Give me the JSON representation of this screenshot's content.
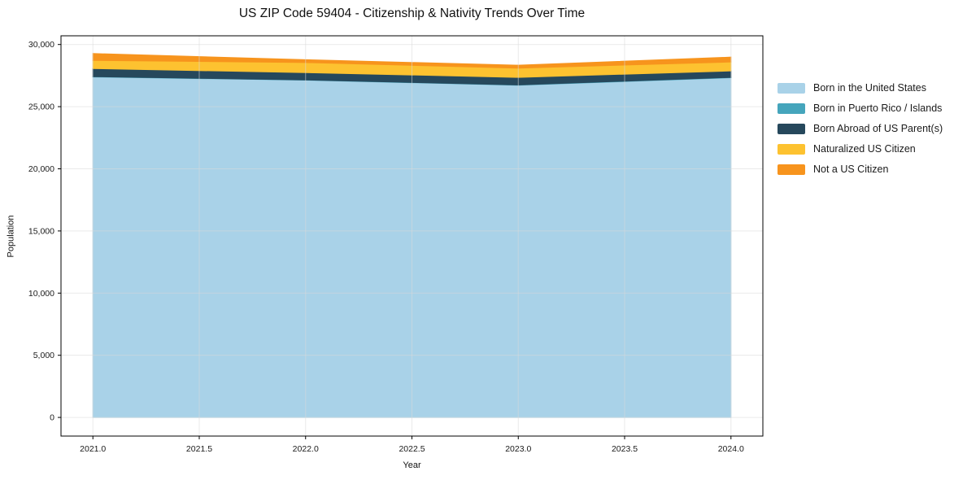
{
  "chart_data": {
    "type": "area",
    "stacked": true,
    "title": "US ZIP Code 59404 - Citizenship & Nativity Trends Over Time",
    "xlabel": "Year",
    "ylabel": "Population",
    "x": [
      2021,
      2022,
      2023,
      2024
    ],
    "series": [
      {
        "name": "Born in the United States",
        "color": "#a9d2e8",
        "values": [
          27390,
          27130,
          26720,
          27330
        ]
      },
      {
        "name": "Born in Puerto Rico / Islands",
        "color": "#45a5bc",
        "values": [
          25,
          25,
          25,
          25
        ]
      },
      {
        "name": "Born Abroad of US Parent(s)",
        "color": "#26485c",
        "values": [
          650,
          590,
          610,
          520
        ]
      },
      {
        "name": "Naturalized US Citizen",
        "color": "#fdc230",
        "values": [
          660,
          805,
          740,
          720
        ]
      },
      {
        "name": "Not a US Citizen",
        "color": "#f7941d",
        "values": [
          550,
          225,
          240,
          390
        ]
      }
    ],
    "xlim": [
      2020.85,
      2024.15
    ],
    "ylim": [
      -1500,
      30700
    ],
    "xticks": [
      2021.0,
      2021.5,
      2022.0,
      2022.5,
      2023.0,
      2023.5,
      2024.0
    ],
    "xtick_labels": [
      "2021.0",
      "2021.5",
      "2022.0",
      "2022.5",
      "2023.0",
      "2023.5",
      "2024.0"
    ],
    "yticks": [
      0,
      5000,
      10000,
      15000,
      20000,
      25000,
      30000
    ],
    "ytick_labels": [
      "0",
      "5,000",
      "10,000",
      "15,000",
      "20,000",
      "25,000",
      "30,000"
    ],
    "grid": true,
    "legend_position": "right-outside",
    "colors": {
      "spine": "#000000",
      "tick_text": "#1a1a1a",
      "grid": "#d9d9d9",
      "background": "#ffffff"
    }
  }
}
